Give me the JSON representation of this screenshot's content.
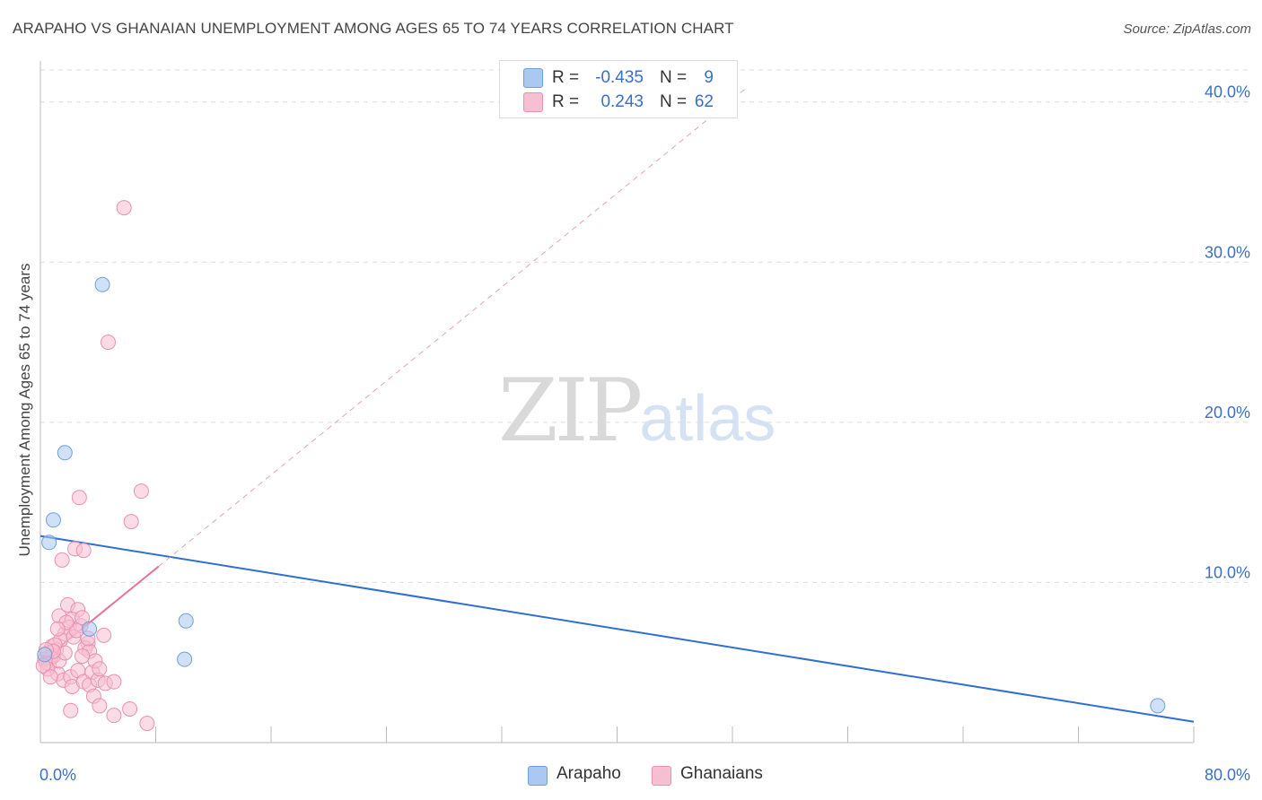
{
  "header": {
    "title": "ARAPAHO VS GHANAIAN UNEMPLOYMENT AMONG AGES 65 TO 74 YEARS CORRELATION CHART",
    "source": "Source: ZipAtlas.com"
  },
  "watermark": {
    "zip": "ZIP",
    "atlas": "atlas"
  },
  "legend": {
    "rows": [
      {
        "r_label": "R =",
        "r_value": "-0.435",
        "n_label": "N =",
        "n_value": "9",
        "color": "#aac8f0",
        "border": "#6f9fd8"
      },
      {
        "r_label": "R =",
        "r_value": "0.243",
        "n_label": "N =",
        "n_value": "62",
        "color": "#f7c0d2",
        "border": "#e990b0"
      }
    ]
  },
  "bottom_legend": [
    {
      "label": "Arapaho",
      "color": "#aac8f0",
      "border": "#6f9fd8"
    },
    {
      "label": "Ghanaians",
      "color": "#f7c0d2",
      "border": "#e990b0"
    }
  ],
  "chart_data": {
    "type": "scatter",
    "title": "ARAPAHO VS GHANAIAN UNEMPLOYMENT AMONG AGES 65 TO 74 YEARS CORRELATION CHART",
    "xlabel": "",
    "ylabel": "Unemployment Among Ages 65 to 74 years",
    "xlim": [
      0,
      80
    ],
    "ylim": [
      0,
      42
    ],
    "x_tick_labels": [
      "0.0%",
      "80.0%"
    ],
    "y_ticks": [
      10,
      20,
      30,
      40
    ],
    "y_tick_labels": [
      "10.0%",
      "20.0%",
      "30.0%",
      "40.0%"
    ],
    "grid": true,
    "series": [
      {
        "name": "Arapaho",
        "color": "#aac8f0",
        "stroke": "#6f9fd8",
        "points": [
          [
            0.6,
            12.5
          ],
          [
            0.9,
            13.9
          ],
          [
            1.7,
            18.1
          ],
          [
            3.4,
            7.1
          ],
          [
            4.3,
            28.6
          ],
          [
            10.1,
            7.6
          ],
          [
            10.0,
            5.2
          ],
          [
            77.5,
            2.3
          ],
          [
            0.3,
            5.5
          ]
        ],
        "trend": {
          "x": [
            0,
            80
          ],
          "y": [
            12.9,
            1.3
          ],
          "color": "#2f6fd0",
          "style": "solid"
        }
      },
      {
        "name": "Ghanaians",
        "color": "#f7c0d2",
        "stroke": "#e990b0",
        "points": [
          [
            5.8,
            33.4
          ],
          [
            4.7,
            25.0
          ],
          [
            1.5,
            11.4
          ],
          [
            1.3,
            7.9
          ],
          [
            1.9,
            8.6
          ],
          [
            2.6,
            8.3
          ],
          [
            2.2,
            7.7
          ],
          [
            2.0,
            7.2
          ],
          [
            2.8,
            7.3
          ],
          [
            2.4,
            12.1
          ],
          [
            2.9,
            7.8
          ],
          [
            1.7,
            6.8
          ],
          [
            0.8,
            6.0
          ],
          [
            1.1,
            5.8
          ],
          [
            0.5,
            5.6
          ],
          [
            0.3,
            5.2
          ],
          [
            0.6,
            4.9
          ],
          [
            0.9,
            5.4
          ],
          [
            0.4,
            5.0
          ],
          [
            1.2,
            4.3
          ],
          [
            1.6,
            3.9
          ],
          [
            2.1,
            4.1
          ],
          [
            2.6,
            4.5
          ],
          [
            2.2,
            3.5
          ],
          [
            3.0,
            3.8
          ],
          [
            3.4,
            3.6
          ],
          [
            3.6,
            4.4
          ],
          [
            4.0,
            3.9
          ],
          [
            4.5,
            3.7
          ],
          [
            5.1,
            3.8
          ],
          [
            3.7,
            2.9
          ],
          [
            2.1,
            2.0
          ],
          [
            4.1,
            2.3
          ],
          [
            5.1,
            1.7
          ],
          [
            6.2,
            2.1
          ],
          [
            7.4,
            1.2
          ],
          [
            6.3,
            13.8
          ],
          [
            7.0,
            15.7
          ],
          [
            2.7,
            15.3
          ],
          [
            3.0,
            12.0
          ],
          [
            4.4,
            6.7
          ],
          [
            3.3,
            6.2
          ],
          [
            3.1,
            5.9
          ],
          [
            3.4,
            5.7
          ],
          [
            3.8,
            5.1
          ],
          [
            4.1,
            4.6
          ],
          [
            1.4,
            6.4
          ],
          [
            1.0,
            6.1
          ],
          [
            0.7,
            5.3
          ],
          [
            0.5,
            4.6
          ],
          [
            0.2,
            4.8
          ],
          [
            0.7,
            4.1
          ],
          [
            1.3,
            5.1
          ],
          [
            1.7,
            5.6
          ],
          [
            2.3,
            6.6
          ],
          [
            3.3,
            6.5
          ],
          [
            2.5,
            7.0
          ],
          [
            1.8,
            7.5
          ],
          [
            1.2,
            7.1
          ],
          [
            0.9,
            5.7
          ],
          [
            2.9,
            5.4
          ],
          [
            0.4,
            5.8
          ]
        ],
        "trend": {
          "x": [
            0,
            8.2
          ],
          "y": [
            5.0,
            11.0
          ],
          "color": "#e8709a",
          "style": "solid"
        },
        "trend_extension": {
          "x": [
            8.2,
            49
          ],
          "y": [
            11.0,
            40.9
          ],
          "color": "#e8a0b8",
          "style": "dashed"
        }
      }
    ]
  }
}
